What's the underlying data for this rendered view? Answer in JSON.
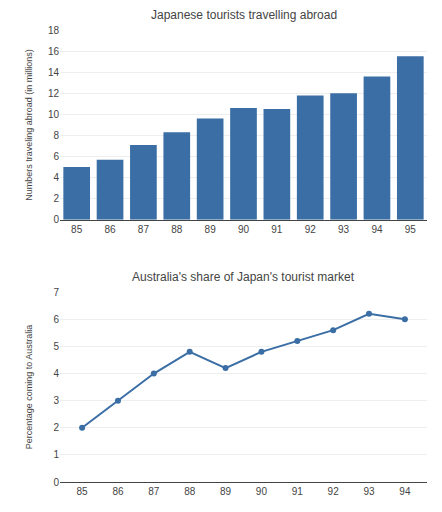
{
  "chart_data": [
    {
      "type": "bar",
      "title": "Japanese tourists travelling abroad",
      "ylabel": "Numbers traveling abroad (in millions)",
      "categories": [
        "85",
        "86",
        "87",
        "88",
        "89",
        "90",
        "91",
        "92",
        "93",
        "94",
        "95"
      ],
      "values": [
        5.0,
        5.7,
        7.1,
        8.3,
        9.6,
        10.6,
        10.5,
        11.8,
        12.0,
        13.6,
        15.5
      ],
      "color": "#3A6EA5",
      "ylim": [
        0,
        18
      ],
      "yticks": [
        0,
        2,
        4,
        6,
        8,
        10,
        12,
        14,
        16,
        18
      ],
      "grid": true
    },
    {
      "type": "line",
      "title": "Australia's share of Japan's tourist market",
      "ylabel": "Percentage coming to Australia",
      "categories": [
        "85",
        "86",
        "87",
        "88",
        "89",
        "90",
        "91",
        "92",
        "93",
        "94"
      ],
      "values": [
        2.0,
        3.0,
        4.0,
        4.8,
        4.2,
        4.8,
        5.2,
        5.6,
        6.2,
        6.0
      ],
      "color": "#3A6EA5",
      "marker": "circle",
      "ylim": [
        0,
        7
      ],
      "yticks": [
        0,
        1,
        2,
        3,
        4,
        5,
        6,
        7
      ],
      "grid": true
    }
  ]
}
